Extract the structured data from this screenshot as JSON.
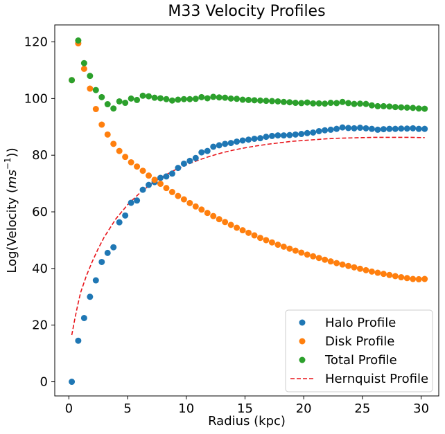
{
  "chart_data": {
    "type": "scatter",
    "title": "M33 Velocity Profiles",
    "xlabel": "Radius (kpc)",
    "ylabel_prefix": "Log(Velocity (",
    "ylabel_unit_base": "ms",
    "ylabel_unit_exp": "−1",
    "ylabel_suffix": "))",
    "xlim": [
      -1.2,
      31.5
    ],
    "ylim": [
      -5,
      126
    ],
    "xticks": [
      0,
      5,
      10,
      15,
      20,
      25,
      30
    ],
    "yticks": [
      0,
      20,
      40,
      60,
      80,
      100,
      120
    ],
    "grid": false,
    "legend_position": "lower right",
    "x": [
      0.25,
      0.8,
      1.3,
      1.8,
      2.3,
      2.8,
      3.3,
      3.8,
      4.3,
      4.8,
      5.3,
      5.8,
      6.3,
      6.8,
      7.3,
      7.8,
      8.3,
      8.8,
      9.3,
      9.8,
      10.3,
      10.8,
      11.3,
      11.8,
      12.3,
      12.8,
      13.3,
      13.8,
      14.3,
      14.8,
      15.3,
      15.8,
      16.3,
      16.8,
      17.3,
      17.8,
      18.3,
      18.8,
      19.3,
      19.8,
      20.3,
      20.8,
      21.3,
      21.8,
      22.3,
      22.8,
      23.3,
      23.8,
      24.3,
      24.8,
      25.3,
      25.8,
      26.3,
      26.8,
      27.3,
      27.8,
      28.3,
      28.8,
      29.3,
      29.8,
      30.3
    ],
    "series": [
      {
        "name": "Halo Profile",
        "marker": "dot",
        "color": "#1f77b4",
        "values": [
          0,
          14.5,
          22.5,
          30,
          35.8,
          42.3,
          45.5,
          47.5,
          56.3,
          58.7,
          63.2,
          64,
          67.8,
          69.5,
          70.5,
          72,
          72.5,
          73.5,
          75.5,
          77,
          78,
          79,
          81,
          81.5,
          83,
          83.5,
          84,
          84.3,
          84.8,
          85.2,
          85.5,
          85.8,
          86,
          86.5,
          86.8,
          87,
          87,
          87.1,
          87.3,
          87.5,
          87.8,
          88,
          88.5,
          88.8,
          89,
          89.3,
          89.8,
          89.6,
          89.5,
          89.7,
          89.5,
          89.3,
          89,
          89.2,
          89.3,
          89.3,
          89.4,
          89.4,
          89.5,
          89.3,
          89.3
        ]
      },
      {
        "name": "Disk Profile",
        "marker": "dot",
        "color": "#ff7f0e",
        "values": [
          106.5,
          119.5,
          110.5,
          103.5,
          96.3,
          90.8,
          87.3,
          84,
          81.5,
          79.4,
          77.5,
          76,
          74.5,
          72.8,
          71.3,
          69.9,
          68.4,
          67,
          65.6,
          64.4,
          63.1,
          61.9,
          60.8,
          59.6,
          58.5,
          57.4,
          56.4,
          55.4,
          54.4,
          53.5,
          52.6,
          51.7,
          50.8,
          50,
          49.2,
          48.4,
          47.7,
          47,
          46.3,
          45.6,
          44.9,
          44.3,
          43.7,
          43.1,
          42.5,
          41.9,
          41.4,
          40.9,
          40.4,
          39.9,
          39.4,
          38.9,
          38.5,
          38.1,
          37.7,
          37.3,
          36.9,
          36.6,
          36.3,
          36.2,
          36.3
        ]
      },
      {
        "name": "Total Profile",
        "marker": "dot",
        "color": "#2ca02c",
        "values": [
          106.5,
          120.5,
          112.5,
          108,
          103,
          100.5,
          98,
          96.5,
          99,
          98.5,
          100,
          99.5,
          101,
          100.8,
          100.3,
          100.1,
          99.8,
          99.3,
          99.6,
          99.8,
          99.8,
          99.9,
          100.5,
          100.1,
          100.6,
          100.4,
          100.3,
          100,
          99.9,
          99.6,
          99.5,
          99.4,
          99.3,
          99.2,
          99.1,
          99,
          98.8,
          98.7,
          98.5,
          98.4,
          98.6,
          98.3,
          98.3,
          98.2,
          98.5,
          98.4,
          98.8,
          98.4,
          98.1,
          98.2,
          98.1,
          97.6,
          97.3,
          97.3,
          97.2,
          97,
          96.9,
          96.8,
          96.7,
          96.5,
          96.4
        ]
      }
    ],
    "line_series": {
      "name": "Hernquist Profile",
      "style": "dashed",
      "color": "#e8141a",
      "x": [
        0.25,
        0.5,
        0.75,
        1,
        1.5,
        2,
        2.5,
        3,
        4,
        5,
        6,
        7,
        8,
        9,
        10,
        11,
        12,
        13,
        14,
        15,
        16,
        17,
        18,
        19,
        20,
        21,
        22,
        23,
        24,
        25,
        26,
        27,
        28,
        29,
        30.3
      ],
      "values": [
        16.5,
        22,
        27,
        31.5,
        37.5,
        42.5,
        47,
        51,
        57.5,
        62.5,
        66.5,
        69.8,
        72.5,
        74.7,
        76.6,
        78.2,
        79.6,
        80.8,
        81.8,
        82.6,
        83.3,
        83.9,
        84.4,
        84.9,
        85.2,
        85.5,
        85.8,
        86,
        86.1,
        86.2,
        86.3,
        86.3,
        86.3,
        86.3,
        86.2
      ]
    }
  }
}
